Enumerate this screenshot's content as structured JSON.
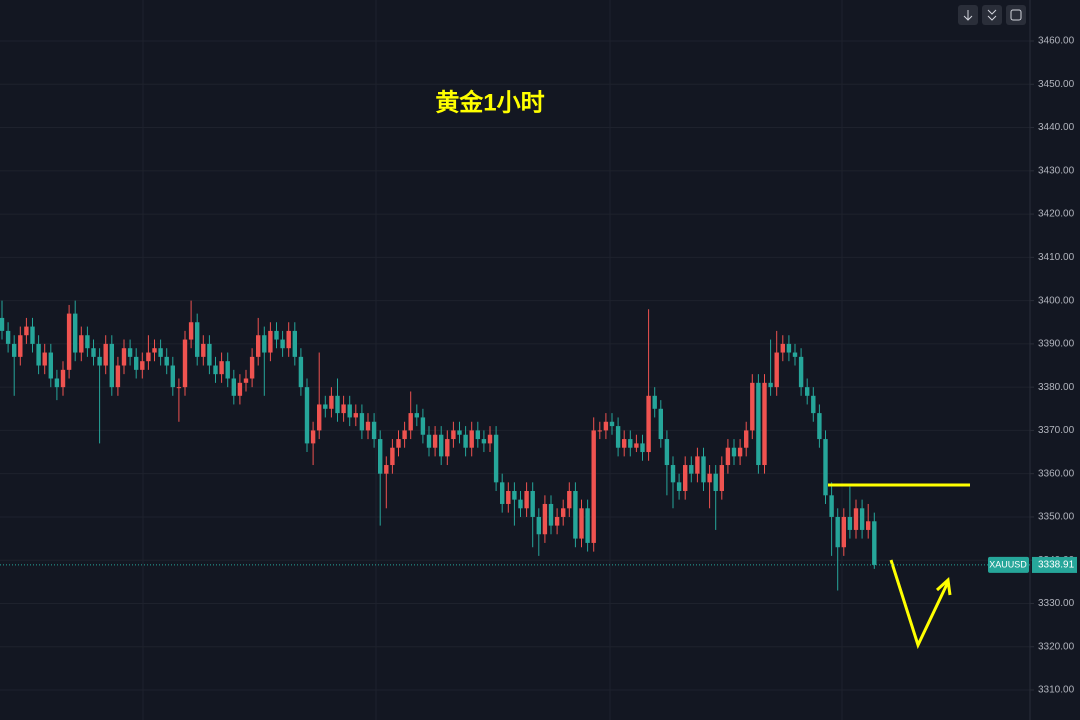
{
  "chart_data": {
    "type": "candlestick",
    "title": "黄金1小时",
    "symbol": "XAUUSD",
    "open": [
      3396,
      3393,
      3390,
      3387,
      3392,
      3394,
      3390,
      3385,
      3388,
      3382,
      3380,
      3384,
      3397,
      3388,
      3392,
      3389,
      3387,
      3385,
      3390,
      3380,
      3385,
      3389,
      3387,
      3384,
      3386,
      3388,
      3389,
      3387,
      3385,
      3380,
      3380,
      3391,
      3395,
      3387,
      3390,
      3385,
      3383,
      3386,
      3382,
      3378,
      3381,
      3382,
      3387,
      3392,
      3388,
      3393,
      3391,
      3389,
      3393,
      3387,
      3380,
      3367,
      3370,
      3376,
      3375,
      3378,
      3374,
      3376,
      3373,
      3374,
      3370,
      3372,
      3368,
      3360,
      3362,
      3366,
      3368,
      3370,
      3374,
      3373,
      3369,
      3366,
      3369,
      3364,
      3368,
      3370,
      3369,
      3366,
      3370,
      3368,
      3367,
      3369,
      3358,
      3353,
      3356,
      3354,
      3352,
      3356,
      3350,
      3346,
      3353,
      3348,
      3350,
      3352,
      3356,
      3345,
      3352,
      3344,
      3370,
      3370,
      3372,
      3371,
      3366,
      3368,
      3366,
      3367,
      3365,
      3378,
      3375,
      3368,
      3362,
      3358,
      3356,
      3362,
      3360,
      3364,
      3358,
      3360,
      3356,
      3362,
      3366,
      3364,
      3366,
      3370,
      3381,
      3362,
      3381,
      3380,
      3388,
      3390,
      3388,
      3387,
      3380,
      3378,
      3374,
      3368,
      3355,
      3350,
      3343,
      3350,
      3347,
      3352,
      3347,
      3349
    ],
    "high": [
      3400,
      3395,
      3392,
      3394,
      3396,
      3396,
      3392,
      3390,
      3390,
      3384,
      3386,
      3399,
      3400,
      3394,
      3394,
      3391,
      3389,
      3392,
      3392,
      3387,
      3391,
      3391,
      3389,
      3388,
      3392,
      3391,
      3391,
      3389,
      3387,
      3382,
      3393,
      3400,
      3397,
      3392,
      3392,
      3387,
      3388,
      3388,
      3384,
      3383,
      3384,
      3389,
      3396,
      3394,
      3395,
      3395,
      3393,
      3395,
      3395,
      3389,
      3382,
      3372,
      3388,
      3378,
      3380,
      3382,
      3378,
      3378,
      3376,
      3376,
      3374,
      3374,
      3370,
      3364,
      3368,
      3370,
      3372,
      3379,
      3376,
      3375,
      3371,
      3371,
      3371,
      3370,
      3372,
      3372,
      3371,
      3372,
      3372,
      3370,
      3371,
      3371,
      3360,
      3358,
      3358,
      3356,
      3358,
      3358,
      3352,
      3355,
      3355,
      3352,
      3354,
      3358,
      3358,
      3354,
      3354,
      3373,
      3372,
      3374,
      3374,
      3373,
      3370,
      3370,
      3369,
      3369,
      3398,
      3380,
      3377,
      3370,
      3364,
      3360,
      3364,
      3364,
      3366,
      3366,
      3362,
      3362,
      3364,
      3368,
      3368,
      3368,
      3372,
      3383,
      3383,
      3383,
      3391,
      3393,
      3392,
      3392,
      3390,
      3389,
      3382,
      3380,
      3376,
      3370,
      3358,
      3352,
      3352,
      3357,
      3354,
      3354,
      3353,
      3351
    ],
    "low": [
      3391,
      3388,
      3378,
      3385,
      3390,
      3388,
      3383,
      3383,
      3380,
      3377,
      3378,
      3382,
      3386,
      3386,
      3387,
      3385,
      3367,
      3383,
      3378,
      3378,
      3383,
      3385,
      3382,
      3382,
      3384,
      3386,
      3385,
      3383,
      3378,
      3372,
      3378,
      3389,
      3385,
      3385,
      3383,
      3381,
      3381,
      3380,
      3376,
      3376,
      3379,
      3380,
      3385,
      3378,
      3386,
      3389,
      3387,
      3387,
      3385,
      3378,
      3365,
      3362,
      3368,
      3373,
      3373,
      3372,
      3372,
      3371,
      3371,
      3368,
      3368,
      3366,
      3348,
      3352,
      3360,
      3364,
      3366,
      3368,
      3371,
      3367,
      3364,
      3364,
      3362,
      3362,
      3366,
      3367,
      3364,
      3364,
      3366,
      3365,
      3365,
      3356,
      3351,
      3351,
      3348,
      3350,
      3350,
      3343,
      3341,
      3344,
      3346,
      3346,
      3348,
      3350,
      3343,
      3343,
      3342,
      3342,
      3368,
      3368,
      3369,
      3364,
      3364,
      3364,
      3365,
      3363,
      3363,
      3373,
      3366,
      3355,
      3352,
      3354,
      3354,
      3358,
      3358,
      3356,
      3352,
      3347,
      3354,
      3360,
      3362,
      3362,
      3364,
      3368,
      3360,
      3360,
      3378,
      3378,
      3386,
      3386,
      3385,
      3378,
      3376,
      3372,
      3366,
      3353,
      3341,
      3333,
      3341,
      3345,
      3345,
      3345,
      3345,
      3338
    ],
    "close": [
      3393,
      3390,
      3387,
      3392,
      3394,
      3390,
      3385,
      3388,
      3382,
      3380,
      3384,
      3397,
      3388,
      3392,
      3389,
      3387,
      3385,
      3390,
      3380,
      3385,
      3389,
      3387,
      3384,
      3386,
      3388,
      3389,
      3387,
      3385,
      3380,
      3380,
      3391,
      3395,
      3387,
      3390,
      3385,
      3383,
      3386,
      3382,
      3378,
      3381,
      3382,
      3387,
      3392,
      3388,
      3393,
      3391,
      3389,
      3393,
      3387,
      3380,
      3367,
      3370,
      3376,
      3375,
      3378,
      3374,
      3376,
      3373,
      3374,
      3370,
      3372,
      3368,
      3360,
      3362,
      3366,
      3368,
      3370,
      3374,
      3373,
      3369,
      3366,
      3369,
      3364,
      3368,
      3370,
      3369,
      3366,
      3370,
      3368,
      3367,
      3369,
      3358,
      3353,
      3356,
      3354,
      3352,
      3356,
      3350,
      3346,
      3353,
      3348,
      3350,
      3352,
      3356,
      3345,
      3352,
      3344,
      3370,
      3370,
      3372,
      3371,
      3366,
      3368,
      3366,
      3367,
      3365,
      3378,
      3375,
      3368,
      3362,
      3358,
      3356,
      3362,
      3360,
      3364,
      3358,
      3360,
      3356,
      3362,
      3366,
      3364,
      3366,
      3370,
      3381,
      3362,
      3381,
      3380,
      3388,
      3390,
      3388,
      3387,
      3380,
      3378,
      3374,
      3368,
      3355,
      3350,
      3343,
      3350,
      3347,
      3352,
      3347,
      3349,
      3338.91
    ],
    "up_color": "#ef5350",
    "down_color": "#26a69a",
    "ylim": [
      3303.07,
      3469.48
    ],
    "yticks": [
      {
        "value": 3310,
        "label": "3310.00"
      },
      {
        "value": 3320,
        "label": "3320.00"
      },
      {
        "value": 3330,
        "label": "3330.00"
      },
      {
        "value": 3340,
        "label": "3340.00"
      },
      {
        "value": 3350,
        "label": "3350.00"
      },
      {
        "value": 3360,
        "label": "3360.00"
      },
      {
        "value": 3370,
        "label": "3370.00"
      },
      {
        "value": 3380,
        "label": "3380.00"
      },
      {
        "value": 3390,
        "label": "3390.00"
      },
      {
        "value": 3400,
        "label": "3400.00"
      },
      {
        "value": 3410,
        "label": "3410.00"
      },
      {
        "value": 3420,
        "label": "3420.00"
      },
      {
        "value": 3430,
        "label": "3430.00"
      },
      {
        "value": 3440,
        "label": "3440.00"
      },
      {
        "value": 3450,
        "label": "3450.00"
      },
      {
        "value": 3460,
        "label": "3460.00"
      }
    ],
    "grid": true
  }
}
